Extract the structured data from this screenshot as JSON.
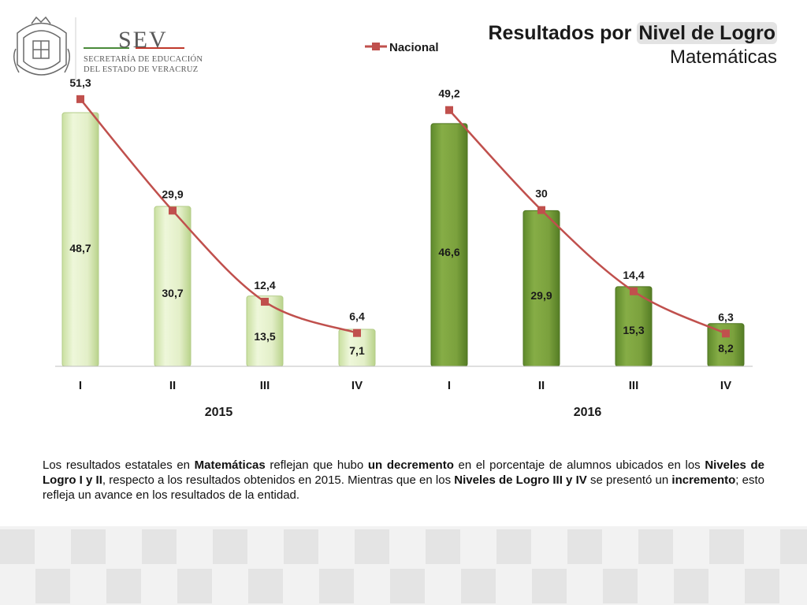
{
  "brand": {
    "name": "SEV",
    "subtitle_line1": "SECRETARÍA DE EDUCACIÓN",
    "subtitle_line2": "DEL ESTADO DE VERACRUZ",
    "colors": {
      "red": "#c0392b",
      "green": "#4a8a3a",
      "gray": "#5a5a5a"
    }
  },
  "title": {
    "prefix": "Resultados por ",
    "highlight": "Nivel de Logro",
    "subtitle": "Matemáticas"
  },
  "chart_data": {
    "type": "bar",
    "categories": [
      "I",
      "II",
      "III",
      "IV",
      "I",
      "II",
      "III",
      "IV"
    ],
    "groups": [
      {
        "label": "2015",
        "indices": [
          0,
          1,
          2,
          3
        ]
      },
      {
        "label": "2016",
        "indices": [
          4,
          5,
          6,
          7
        ]
      }
    ],
    "bar_labels": [
      "48,7",
      "30,7",
      "13,5",
      "7,1",
      "46,6",
      "29,9",
      "15,3",
      "8,2"
    ],
    "line_labels": [
      "51,3",
      "29,9",
      "12,4",
      "6,4",
      "49,2",
      "30",
      "14,4",
      "6,3"
    ],
    "series": [
      {
        "type": "bar",
        "values": [
          48.7,
          30.7,
          13.5,
          7.1,
          46.6,
          29.9,
          15.3,
          8.2
        ],
        "colors": [
          "#e6f2cc",
          "#e6f2cc",
          "#e6f2cc",
          "#e6f2cc",
          "#7ca23e",
          "#7ca23e",
          "#7ca23e",
          "#7ca23e"
        ]
      },
      {
        "type": "line",
        "name": "Nacional",
        "values": [
          51.3,
          29.9,
          12.4,
          6.4,
          49.2,
          30,
          14.4,
          6.3
        ],
        "color": "#c0504d"
      }
    ],
    "ylim": [
      0,
      54
    ],
    "legend": "top",
    "grid": false
  },
  "summary": {
    "t1": "Los resultados estatales en ",
    "b1": "Matemáticas",
    "t2": " reflejan que hubo ",
    "b2": "un decremento",
    "t3": " en el porcentaje de alumnos ubicados en los ",
    "b3": "Niveles de Logro I y II",
    "t4": ", respecto a los resultados obtenidos en 2015. Mientras que en los ",
    "b4": "Niveles de Logro III y IV",
    "t5": " se presentó un ",
    "b5": "incremento",
    "t6": "; esto refleja un avance en los resultados de la entidad."
  }
}
